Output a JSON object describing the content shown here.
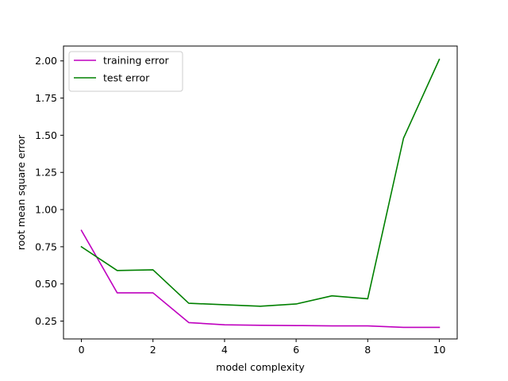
{
  "chart_data": {
    "type": "line",
    "title": "",
    "xlabel": "model complexity",
    "ylabel": "root mean square error",
    "xlim": [
      -0.5,
      10.5
    ],
    "ylim": [
      0.13,
      2.1
    ],
    "xticks": [
      0,
      2,
      4,
      6,
      8,
      10
    ],
    "yticks": [
      0.25,
      0.5,
      0.75,
      1.0,
      1.25,
      1.5,
      1.75,
      2.0
    ],
    "ytick_labels": [
      "0.25",
      "0.50",
      "0.75",
      "1.00",
      "1.25",
      "1.50",
      "1.75",
      "2.00"
    ],
    "grid": false,
    "legend_position": "top-left",
    "x": [
      0,
      1,
      2,
      3,
      4,
      5,
      6,
      7,
      8,
      9,
      10
    ],
    "series": [
      {
        "name": "training error",
        "color": "#bf00bf",
        "values": [
          0.86,
          0.44,
          0.44,
          0.24,
          0.225,
          0.222,
          0.22,
          0.218,
          0.218,
          0.208,
          0.208
        ]
      },
      {
        "name": "test error",
        "color": "#008000",
        "values": [
          0.75,
          0.59,
          0.595,
          0.37,
          0.36,
          0.35,
          0.365,
          0.42,
          0.4,
          1.48,
          2.01
        ]
      }
    ]
  }
}
